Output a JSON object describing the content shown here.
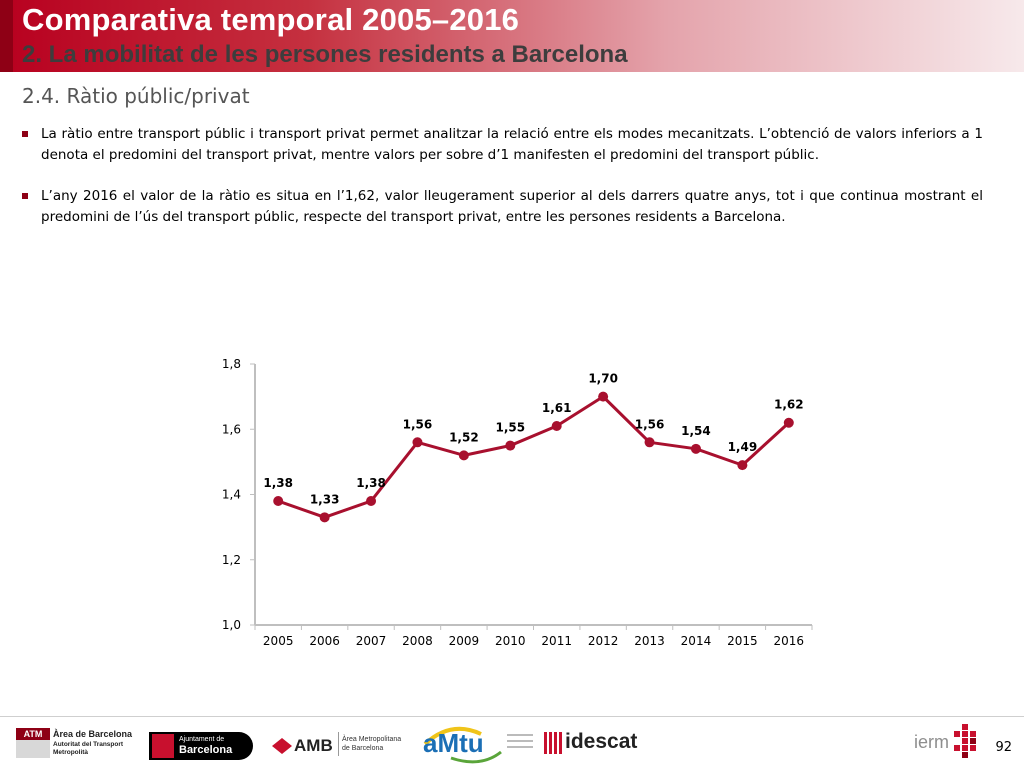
{
  "header": {
    "title": "Comparativa temporal 2005–2016",
    "subtitle": "2. La mobilitat de les persones residents a Barcelona"
  },
  "section_title": "2.4. Ràtio públic/privat",
  "bullets": [
    "La ràtio entre transport públic i transport privat permet analitzar la relació entre els modes mecanitzats. L’obtenció de valors inferiors a 1 denota el predomini del transport privat, mentre valors per sobre d’1 manifesten el predomini del transport públic.",
    "L’any 2016 el valor de la ràtio es situa en l’1,62, valor lleugerament superior al dels darrers quatre anys, tot i que continua mostrant el predomini de l’ús del transport públic, respecte del transport privat, entre les persones residents a Barcelona."
  ],
  "chart_data": {
    "type": "line",
    "x": [
      "2005",
      "2006",
      "2007",
      "2008",
      "2009",
      "2010",
      "2011",
      "2012",
      "2013",
      "2014",
      "2015",
      "2016"
    ],
    "values": [
      1.38,
      1.33,
      1.38,
      1.56,
      1.52,
      1.55,
      1.61,
      1.7,
      1.56,
      1.54,
      1.49,
      1.62
    ],
    "labels": [
      "1,38",
      "1,33",
      "1,38",
      "1,56",
      "1,52",
      "1,55",
      "1,61",
      "1,70",
      "1,56",
      "1,54",
      "1,49",
      "1,62"
    ],
    "yticks": [
      "1,0",
      "1,2",
      "1,4",
      "1,6",
      "1,8"
    ],
    "ytick_values": [
      1.0,
      1.2,
      1.4,
      1.6,
      1.8
    ],
    "ylim": [
      1.0,
      1.8
    ],
    "color": "#a8102e",
    "title": "",
    "xlabel": "",
    "ylabel": "",
    "grid": false
  },
  "footer": {
    "logos": {
      "atm_badge": "ATM",
      "atm_line1": "Àrea de Barcelona",
      "atm_line2": "Autoritat del Transport",
      "atm_line3": "Metropolità",
      "ajuntament_line1": "Ajuntament de",
      "ajuntament_line2": "Barcelona",
      "amb_name": "AMB",
      "amb_line1": "Àrea Metropolitana",
      "amb_line2": "de Barcelona",
      "amtu_name": "aMtu",
      "idescat_name": "idescat",
      "iermb_name": "ierm"
    },
    "page_number": "92"
  },
  "colors": {
    "brand_red": "#8e0015",
    "line_red": "#a8102e",
    "amtu_blue": "#1b6fb5",
    "amtu_yellow": "#f0c419",
    "amtu_green": "#5aa53a"
  }
}
